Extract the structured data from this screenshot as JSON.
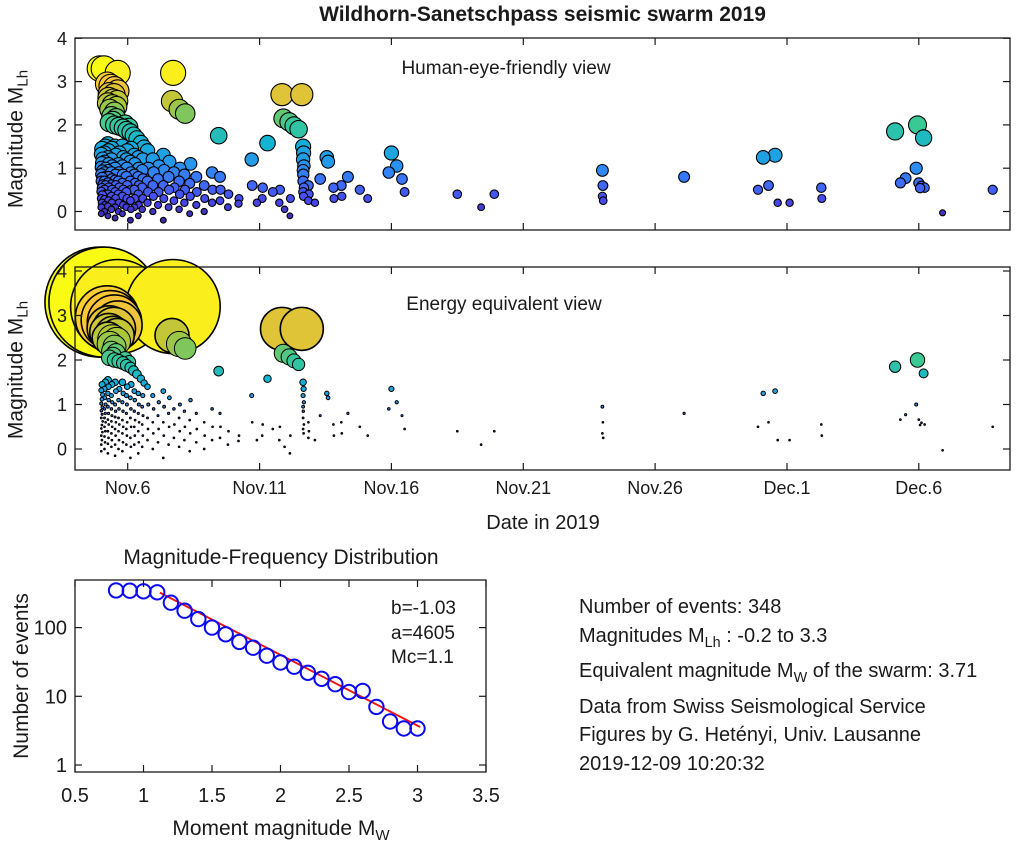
{
  "title": "Wildhorn-Sanetschpass seismic swarm 2019",
  "colors": {
    "axis": "#1a1a1a",
    "marker_outline": "#000000",
    "mfd_marker_blue": "#0a0af0",
    "fit_line_red": "#f01212",
    "background": "#ffffff"
  },
  "colormap": {
    "name": "parula-like",
    "range": [
      -0.2,
      3.3
    ],
    "stops": [
      "#3e26a8",
      "#4747eb",
      "#3e6ffe",
      "#2797eb",
      "#12b1d6",
      "#37c897",
      "#abc739",
      "#fec338",
      "#f9fb15"
    ]
  },
  "date_axis": {
    "label": "Date in 2019",
    "day_unit": "day number counted from 2019-11-01 (Dec.6 = 36)",
    "xlim_days": [
      4.05,
      39.45
    ],
    "ticks": [
      {
        "day": 6,
        "label": "Nov.6"
      },
      {
        "day": 11,
        "label": "Nov.11"
      },
      {
        "day": 16,
        "label": "Nov.16"
      },
      {
        "day": 21,
        "label": "Nov.21"
      },
      {
        "day": 26,
        "label": "Nov.26"
      },
      {
        "day": 31,
        "label": "Dec.1"
      },
      {
        "day": 36,
        "label": "Dec.6"
      }
    ]
  },
  "chart_data": [
    {
      "type": "scatter",
      "panel": "top",
      "inner_label": "Human-eye-friendly view",
      "ylabel": [
        {
          "t": "Magnitude M"
        },
        {
          "t": "Lh",
          "sub": true
        }
      ],
      "yticks": [
        0,
        1,
        2,
        3,
        4
      ],
      "ylim": [
        -0.42,
        4.03
      ],
      "size_encoding": "marker radius grows linearly with magnitude",
      "color_encoding": "magnitude on parula colormap, caxis -0.2 to 3.3"
    },
    {
      "type": "scatter",
      "panel": "middle",
      "inner_label": "Energy equivalent view",
      "ylabel": [
        {
          "t": "Magnitude M"
        },
        {
          "t": "Lh",
          "sub": true
        }
      ],
      "yticks": [
        0,
        1,
        2,
        3,
        4
      ],
      "ylim": [
        -0.47,
        4.09
      ],
      "size_encoding": "marker size scales with radiated seismic energy (exponential in magnitude)",
      "color_encoding": "magnitude on parula colormap, caxis -0.2 to 3.3"
    },
    {
      "type": "scatter",
      "panel": "bottom-left",
      "title": "Magnitude-Frequency Distribution",
      "xlabel": [
        {
          "t": "Moment magnitude M"
        },
        {
          "t": "W",
          "sub": true
        }
      ],
      "ylabel": [
        {
          "t": "Number of events"
        }
      ],
      "xlim": [
        0.5,
        3.5
      ],
      "xticks": [
        "0.5",
        "1",
        "1.5",
        "2",
        "2.5",
        "3",
        "3.5"
      ],
      "yticks": [
        "1",
        "10",
        "100"
      ],
      "ylim_log": [
        0.8,
        490
      ],
      "yaxis_scale": "log",
      "points": [
        [
          0.8,
          348
        ],
        [
          0.9,
          345
        ],
        [
          1.0,
          338
        ],
        [
          1.1,
          326
        ],
        [
          1.2,
          230
        ],
        [
          1.3,
          176
        ],
        [
          1.4,
          133
        ],
        [
          1.5,
          100
        ],
        [
          1.6,
          80
        ],
        [
          1.7,
          62
        ],
        [
          1.8,
          51
        ],
        [
          1.9,
          39
        ],
        [
          2.0,
          31
        ],
        [
          2.1,
          27
        ],
        [
          2.2,
          22
        ],
        [
          2.3,
          18
        ],
        [
          2.4,
          15
        ],
        [
          2.5,
          11.5
        ],
        [
          2.6,
          12
        ],
        [
          2.7,
          7
        ],
        [
          2.8,
          4.3
        ],
        [
          2.9,
          3.4
        ],
        [
          3.0,
          3.4
        ]
      ],
      "fit": {
        "b": -1.03,
        "a": 4605,
        "Mc": 1.1,
        "line_x": [
          1.12,
          3.02
        ]
      },
      "fit_labels": [
        "b=-1.03",
        "a=4605",
        "Mc=1.1"
      ]
    }
  ],
  "events": {
    "columns": [
      "day",
      "magnitude_MLh"
    ],
    "rows": [
      [
        4.95,
        3.3
      ],
      [
        5.1,
        3.3
      ],
      [
        5.62,
        3.2
      ],
      [
        7.72,
        3.2
      ],
      [
        5.22,
        2.95
      ],
      [
        5.35,
        2.9
      ],
      [
        5.5,
        2.85
      ],
      [
        5.62,
        2.78
      ],
      [
        5.3,
        2.72
      ],
      [
        5.48,
        2.7
      ],
      [
        5.28,
        2.62
      ],
      [
        5.45,
        2.58
      ],
      [
        5.6,
        2.55
      ],
      [
        7.68,
        2.55
      ],
      [
        5.25,
        2.5
      ],
      [
        5.42,
        2.46
      ],
      [
        5.58,
        2.42
      ],
      [
        5.32,
        2.36
      ],
      [
        7.95,
        2.36
      ],
      [
        5.5,
        2.3
      ],
      [
        8.18,
        2.26
      ],
      [
        5.38,
        2.2
      ],
      [
        5.56,
        2.16
      ],
      [
        5.44,
        2.1
      ],
      [
        5.3,
        2.05
      ],
      [
        5.5,
        2.0
      ],
      [
        5.9,
        2.02
      ],
      [
        5.66,
        1.97
      ],
      [
        6.05,
        1.95
      ],
      [
        5.82,
        1.93
      ],
      [
        5.95,
        1.88
      ],
      [
        6.1,
        1.83
      ],
      [
        6.22,
        1.76
      ],
      [
        6.35,
        1.68
      ],
      [
        6.5,
        1.58
      ],
      [
        6.62,
        1.48
      ],
      [
        9.45,
        1.75
      ],
      [
        11.3,
        1.58
      ],
      [
        11.85,
        2.7
      ],
      [
        12.6,
        2.7
      ],
      [
        11.9,
        2.15
      ],
      [
        12.12,
        2.07
      ],
      [
        12.3,
        1.98
      ],
      [
        12.48,
        1.9
      ],
      [
        35.1,
        1.85
      ],
      [
        35.95,
        2.0
      ],
      [
        36.18,
        1.7
      ],
      [
        5.0,
        -0.05
      ],
      [
        5.0,
        0.1
      ],
      [
        5.02,
        0.2
      ],
      [
        5.0,
        0.3
      ],
      [
        5.04,
        0.38
      ],
      [
        5.0,
        0.46
      ],
      [
        5.02,
        0.54
      ],
      [
        5.05,
        0.62
      ],
      [
        5.0,
        0.7
      ],
      [
        5.03,
        0.78
      ],
      [
        5.0,
        0.86
      ],
      [
        5.04,
        0.94
      ],
      [
        5.0,
        1.02
      ],
      [
        5.02,
        1.12
      ],
      [
        5.05,
        1.22
      ],
      [
        5.0,
        1.32
      ],
      [
        5.03,
        1.45
      ],
      [
        5.12,
        0.0
      ],
      [
        5.14,
        0.15
      ],
      [
        5.12,
        0.28
      ],
      [
        5.15,
        0.4
      ],
      [
        5.12,
        0.5
      ],
      [
        5.16,
        0.6
      ],
      [
        5.12,
        0.7
      ],
      [
        5.15,
        0.8
      ],
      [
        5.12,
        0.9
      ],
      [
        5.16,
        1.0
      ],
      [
        5.13,
        1.15
      ],
      [
        5.12,
        1.35
      ],
      [
        5.15,
        1.5
      ],
      [
        5.25,
        -0.1
      ],
      [
        5.25,
        0.12
      ],
      [
        5.27,
        0.25
      ],
      [
        5.25,
        0.4
      ],
      [
        5.28,
        0.55
      ],
      [
        5.25,
        0.66
      ],
      [
        5.27,
        0.8
      ],
      [
        5.25,
        0.95
      ],
      [
        5.28,
        1.1
      ],
      [
        5.25,
        1.25
      ],
      [
        5.27,
        1.4
      ],
      [
        5.25,
        1.55
      ],
      [
        5.38,
        0.05
      ],
      [
        5.4,
        0.2
      ],
      [
        5.38,
        0.35
      ],
      [
        5.41,
        0.5
      ],
      [
        5.38,
        0.62
      ],
      [
        5.4,
        0.75
      ],
      [
        5.38,
        0.9
      ],
      [
        5.41,
        1.05
      ],
      [
        5.38,
        1.2
      ],
      [
        5.4,
        1.45
      ],
      [
        5.52,
        -0.15
      ],
      [
        5.52,
        0.1
      ],
      [
        5.54,
        0.3
      ],
      [
        5.52,
        0.45
      ],
      [
        5.55,
        0.6
      ],
      [
        5.52,
        0.72
      ],
      [
        5.54,
        0.85
      ],
      [
        5.52,
        1.0
      ],
      [
        5.55,
        1.3
      ],
      [
        5.52,
        1.5
      ],
      [
        5.65,
        0.0
      ],
      [
        5.67,
        0.2
      ],
      [
        5.65,
        0.4
      ],
      [
        5.68,
        0.55
      ],
      [
        5.65,
        0.7
      ],
      [
        5.67,
        0.9
      ],
      [
        5.65,
        1.1
      ],
      [
        5.68,
        1.35
      ],
      [
        5.8,
        -0.05
      ],
      [
        5.82,
        0.15
      ],
      [
        5.8,
        0.35
      ],
      [
        5.83,
        0.5
      ],
      [
        5.8,
        0.65
      ],
      [
        5.82,
        0.85
      ],
      [
        5.8,
        1.05
      ],
      [
        5.83,
        1.25
      ],
      [
        5.8,
        1.5
      ],
      [
        5.95,
        0.1
      ],
      [
        5.97,
        0.3
      ],
      [
        5.95,
        0.45
      ],
      [
        5.98,
        0.6
      ],
      [
        5.95,
        0.8
      ],
      [
        5.97,
        1.0
      ],
      [
        5.95,
        1.2
      ],
      [
        5.98,
        1.4
      ],
      [
        6.1,
        -0.2
      ],
      [
        6.12,
        0.05
      ],
      [
        6.1,
        0.25
      ],
      [
        6.13,
        0.5
      ],
      [
        6.1,
        0.7
      ],
      [
        6.12,
        0.9
      ],
      [
        6.1,
        1.15
      ],
      [
        6.13,
        1.45
      ],
      [
        6.25,
        0.1
      ],
      [
        6.27,
        0.3
      ],
      [
        6.25,
        0.5
      ],
      [
        6.28,
        0.65
      ],
      [
        6.25,
        0.85
      ],
      [
        6.27,
        1.1
      ],
      [
        6.25,
        1.3
      ],
      [
        6.4,
        -0.1
      ],
      [
        6.42,
        0.15
      ],
      [
        6.4,
        0.4
      ],
      [
        6.43,
        0.6
      ],
      [
        6.4,
        0.8
      ],
      [
        6.42,
        1.0
      ],
      [
        6.4,
        1.25
      ],
      [
        6.55,
        0.05
      ],
      [
        6.57,
        0.3
      ],
      [
        6.55,
        0.55
      ],
      [
        6.58,
        0.75
      ],
      [
        6.55,
        0.95
      ],
      [
        6.57,
        1.2
      ],
      [
        6.75,
        0.2
      ],
      [
        6.77,
        0.45
      ],
      [
        6.75,
        0.7
      ],
      [
        6.78,
        1.0
      ],
      [
        6.75,
        1.4
      ],
      [
        6.95,
        0.0
      ],
      [
        6.97,
        0.35
      ],
      [
        6.95,
        0.6
      ],
      [
        6.98,
        0.9
      ],
      [
        6.95,
        1.2
      ],
      [
        7.15,
        0.15
      ],
      [
        7.17,
        0.45
      ],
      [
        7.15,
        0.75
      ],
      [
        7.18,
        1.05
      ],
      [
        7.35,
        -0.2
      ],
      [
        7.37,
        0.3
      ],
      [
        7.35,
        0.6
      ],
      [
        7.38,
        0.95
      ],
      [
        7.35,
        1.3
      ],
      [
        7.55,
        0.1
      ],
      [
        7.57,
        0.5
      ],
      [
        7.55,
        0.8
      ],
      [
        7.58,
        1.15
      ],
      [
        7.75,
        0.25
      ],
      [
        7.77,
        0.55
      ],
      [
        7.75,
        0.9
      ],
      [
        7.95,
        0.05
      ],
      [
        7.97,
        0.4
      ],
      [
        7.95,
        0.7
      ],
      [
        7.98,
        1.0
      ],
      [
        8.15,
        0.2
      ],
      [
        8.17,
        0.5
      ],
      [
        8.15,
        0.85
      ],
      [
        8.35,
        -0.05
      ],
      [
        8.37,
        0.35
      ],
      [
        8.35,
        0.65
      ],
      [
        8.38,
        1.1
      ],
      [
        8.6,
        0.15
      ],
      [
        8.62,
        0.45
      ],
      [
        8.6,
        0.8
      ],
      [
        8.9,
        0.0
      ],
      [
        8.92,
        0.3
      ],
      [
        8.9,
        0.6
      ],
      [
        9.2,
        0.2
      ],
      [
        9.22,
        0.5
      ],
      [
        9.2,
        0.9
      ],
      [
        9.5,
        0.25
      ],
      [
        9.52,
        0.5
      ],
      [
        9.5,
        0.8
      ],
      [
        9.8,
        0.1
      ],
      [
        9.82,
        0.4
      ],
      [
        10.2,
        0.18
      ],
      [
        10.22,
        0.3
      ],
      [
        10.7,
        1.2
      ],
      [
        10.72,
        0.6
      ],
      [
        10.9,
        0.2
      ],
      [
        11.1,
        0.3
      ],
      [
        11.12,
        0.55
      ],
      [
        11.5,
        0.45
      ],
      [
        11.75,
        0.2
      ],
      [
        11.77,
        0.5
      ],
      [
        11.95,
        0.05
      ],
      [
        12.15,
        -0.1
      ],
      [
        12.17,
        0.3
      ],
      [
        12.65,
        1.5
      ],
      [
        12.67,
        1.35
      ],
      [
        12.65,
        1.2
      ],
      [
        12.68,
        1.05
      ],
      [
        12.65,
        0.95
      ],
      [
        12.66,
        0.85
      ],
      [
        12.65,
        0.7
      ],
      [
        12.68,
        0.55
      ],
      [
        12.65,
        0.45
      ],
      [
        12.67,
        0.35
      ],
      [
        12.85,
        0.6
      ],
      [
        12.87,
        0.4
      ],
      [
        12.85,
        0.25
      ],
      [
        13.1,
        0.2
      ],
      [
        13.3,
        0.75
      ],
      [
        13.55,
        1.25
      ],
      [
        13.6,
        1.15
      ],
      [
        13.8,
        0.55
      ],
      [
        13.82,
        0.3
      ],
      [
        14.1,
        0.6
      ],
      [
        14.12,
        0.35
      ],
      [
        14.35,
        0.8
      ],
      [
        14.8,
        0.5
      ],
      [
        15.1,
        0.3
      ],
      [
        15.9,
        0.9
      ],
      [
        16.0,
        1.35
      ],
      [
        16.2,
        1.05
      ],
      [
        16.4,
        0.75
      ],
      [
        16.5,
        0.45
      ],
      [
        18.5,
        0.4
      ],
      [
        19.4,
        0.1
      ],
      [
        19.9,
        0.4
      ],
      [
        24.0,
        0.95
      ],
      [
        24.02,
        0.6
      ],
      [
        24.0,
        0.35
      ],
      [
        24.03,
        0.25
      ],
      [
        27.1,
        0.8
      ],
      [
        29.9,
        0.5
      ],
      [
        30.1,
        1.25
      ],
      [
        30.3,
        0.6
      ],
      [
        30.55,
        1.3
      ],
      [
        30.65,
        0.2
      ],
      [
        31.1,
        0.2
      ],
      [
        32.3,
        0.55
      ],
      [
        32.32,
        0.3
      ],
      [
        35.3,
        0.66
      ],
      [
        35.5,
        0.77
      ],
      [
        35.9,
        1.0
      ],
      [
        36.0,
        0.66
      ],
      [
        36.05,
        0.54
      ],
      [
        36.1,
        0.59
      ],
      [
        36.22,
        0.55
      ],
      [
        36.9,
        -0.03
      ],
      [
        38.8,
        0.5
      ]
    ]
  },
  "info_block": {
    "lines": [
      [
        {
          "t": "Number of events: 348"
        }
      ],
      [
        {
          "t": "Magnitudes M"
        },
        {
          "t": "Lh",
          "sub": true
        },
        {
          "t": " : -0.2 to 3.3"
        }
      ],
      [
        {
          "t": "Equivalent magnitude M"
        },
        {
          "t": "W",
          "sub": true
        },
        {
          "t": " of the swarm: 3.71"
        }
      ],
      [
        {
          "t": "Data from Swiss Seismological Service"
        }
      ],
      [
        {
          "t": "Figures by G. Hetényi, Univ. Lausanne"
        }
      ],
      [
        {
          "t": "2019-12-09 10:20:32"
        }
      ]
    ]
  }
}
